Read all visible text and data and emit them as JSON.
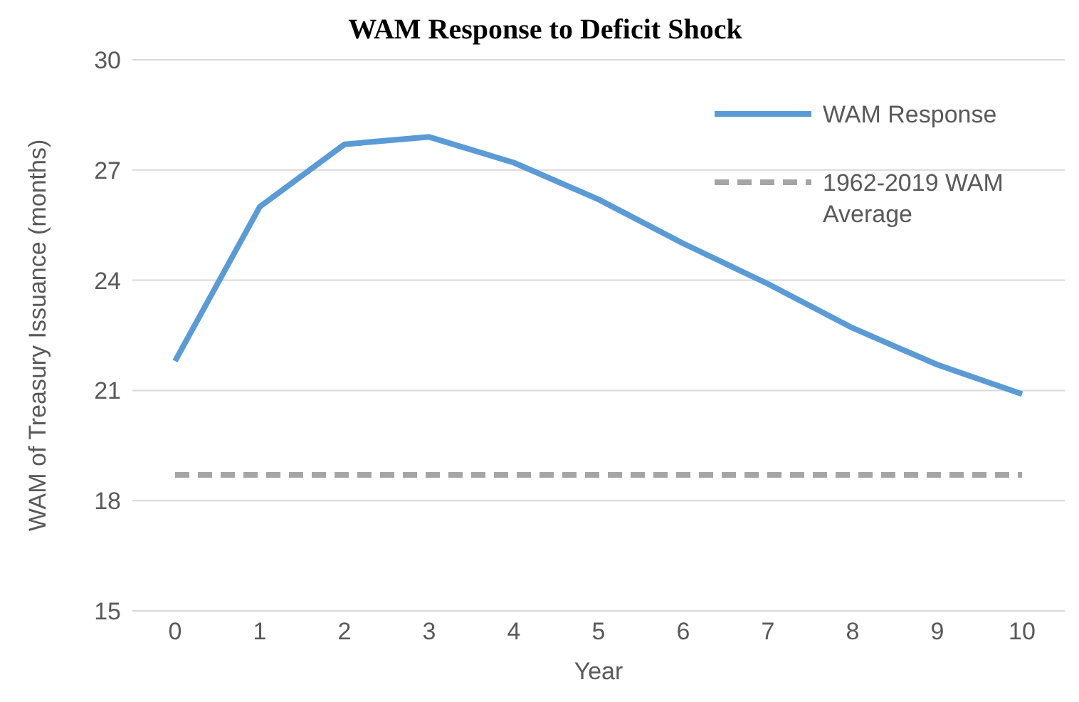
{
  "chart_data": {
    "type": "line",
    "title": "WAM Response to Deficit Shock",
    "xlabel": "Year",
    "ylabel": "WAM of Treasury Issuance (months)",
    "categories": [
      "0",
      "1",
      "2",
      "3",
      "4",
      "5",
      "6",
      "7",
      "8",
      "9",
      "10"
    ],
    "series": [
      {
        "name": "WAM Response",
        "color": "#5b9bd5",
        "line_style": "solid",
        "values": [
          21.8,
          26.0,
          27.7,
          27.9,
          27.2,
          26.2,
          25.0,
          23.9,
          22.7,
          21.7,
          20.9
        ]
      },
      {
        "name": "1962-2019 WAM Average",
        "color": "#a5a5a5",
        "line_style": "dashed",
        "values": [
          18.7,
          18.7,
          18.7,
          18.7,
          18.7,
          18.7,
          18.7,
          18.7,
          18.7,
          18.7,
          18.7
        ]
      }
    ],
    "ylim": [
      15,
      30
    ],
    "yticks": [
      15,
      18,
      21,
      24,
      27,
      30
    ],
    "grid": "y",
    "legend": "top right",
    "marker": "none"
  }
}
